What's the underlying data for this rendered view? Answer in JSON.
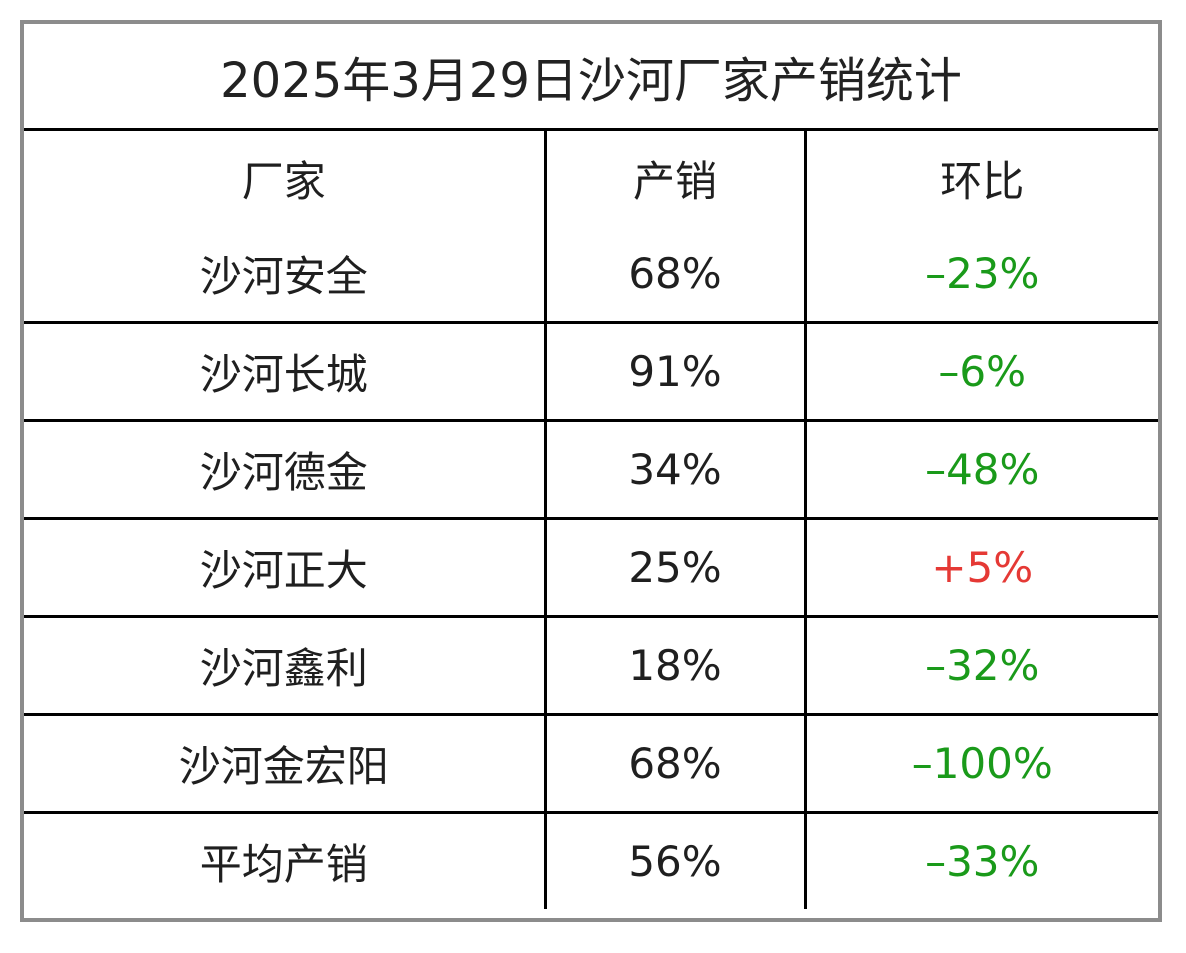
{
  "title": "2025年3月29日沙河厂家产销统计",
  "headers": {
    "factory": "厂家",
    "sales": "产销",
    "change": "环比"
  },
  "rows": [
    {
      "factory": "沙河安全",
      "sales": "68%",
      "change": "–23%",
      "trend": "down"
    },
    {
      "factory": "沙河长城",
      "sales": "91%",
      "change": "–6%",
      "trend": "down"
    },
    {
      "factory": "沙河德金",
      "sales": "34%",
      "change": "–48%",
      "trend": "down"
    },
    {
      "factory": "沙河正大",
      "sales": "25%",
      "change": "+5%",
      "trend": "up"
    },
    {
      "factory": "沙河鑫利",
      "sales": "18%",
      "change": "–32%",
      "trend": "down"
    },
    {
      "factory": "沙河金宏阳",
      "sales": "68%",
      "change": "–100%",
      "trend": "down"
    },
    {
      "factory": "平均产销",
      "sales": "56%",
      "change": "–33%",
      "trend": "down"
    }
  ],
  "colors": {
    "up": "#e53935",
    "down": "#1a9a1a",
    "frame": "#8c8c8c"
  }
}
